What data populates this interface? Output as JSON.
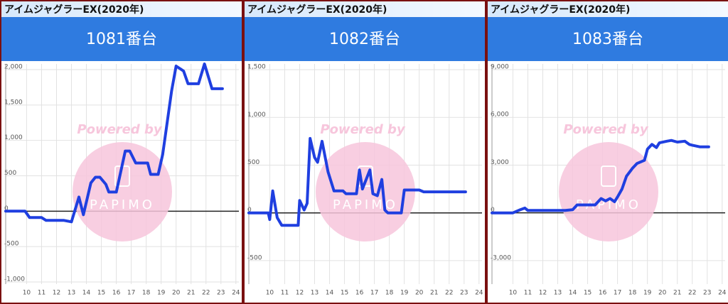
{
  "chart_data": [
    {
      "type": "line",
      "title": "アイムジャグラーEX(2020年)",
      "subtitle": "1081番台",
      "watermark": "Powered by",
      "logo": "PAPIMO",
      "color": "#1f3fe0",
      "grid": true,
      "x": [
        8.6,
        9.9,
        10.2,
        11.0,
        11.3,
        12.5,
        13.0,
        13.5,
        13.8,
        14.3,
        14.6,
        14.9,
        15.3,
        15.5,
        16.0,
        16.6,
        16.9,
        17.3,
        18.1,
        18.3,
        18.8,
        19.1,
        19.7,
        20.0,
        20.5,
        20.8,
        21.5,
        21.9,
        22.4,
        23.1
      ],
      "values": [
        0,
        0,
        -90,
        -90,
        -130,
        -130,
        -150,
        200,
        -50,
        400,
        480,
        480,
        380,
        270,
        270,
        850,
        850,
        680,
        680,
        520,
        520,
        800,
        1700,
        2050,
        1980,
        1800,
        1800,
        2080,
        1730,
        1730
      ],
      "xlim": [
        8.6,
        24.2
      ],
      "xticks": [
        10,
        11,
        12,
        13,
        14,
        15,
        16,
        17,
        18,
        19,
        20,
        21,
        22,
        23,
        24
      ],
      "ylim": [
        -1030,
        2080
      ],
      "yticks": [
        {
          "value": -1000,
          "label": "-1,000"
        },
        -500,
        0,
        500,
        {
          "value": 1000,
          "label": "1,000"
        },
        {
          "value": 1500,
          "label": "1,500"
        },
        {
          "value": 2000,
          "label": "2,000"
        }
      ]
    },
    {
      "type": "line",
      "title": "アイムジャグラーEX(2020年)",
      "subtitle": "1082番台",
      "watermark": "Powered by",
      "logo": "PAPIMO",
      "color": "#1f3fe0",
      "grid": true,
      "x": [
        8.6,
        9.9,
        10.0,
        10.2,
        10.5,
        10.8,
        11.9,
        12.0,
        12.3,
        12.5,
        12.7,
        13.0,
        13.2,
        13.5,
        13.9,
        14.3,
        14.9,
        15.1,
        15.8,
        16.0,
        16.2,
        16.7,
        16.9,
        17.2,
        17.5,
        17.7,
        17.9,
        18.8,
        19.0,
        20.0,
        20.3,
        23.1
      ],
      "values": [
        0,
        0,
        -70,
        230,
        -50,
        -130,
        -130,
        130,
        30,
        100,
        780,
        580,
        530,
        750,
        430,
        230,
        230,
        200,
        200,
        450,
        250,
        450,
        200,
        180,
        350,
        30,
        0,
        0,
        240,
        240,
        220,
        220
      ],
      "xlim": [
        8.6,
        24.2
      ],
      "xticks": [
        10,
        11,
        12,
        13,
        14,
        15,
        16,
        17,
        18,
        19,
        20,
        21,
        22,
        23,
        24
      ],
      "ylim": [
        -746,
        1560
      ],
      "yticks": [
        -500,
        0,
        500,
        {
          "value": 1000,
          "label": "1,000"
        },
        {
          "value": 1500,
          "label": "1,500"
        }
      ]
    },
    {
      "type": "line",
      "title": "アイムジャグラーEX(2020年)",
      "subtitle": "1083番台",
      "watermark": "Powered by",
      "logo": "PAPIMO",
      "color": "#1f3fe0",
      "grid": true,
      "x": [
        8.6,
        10.0,
        10.5,
        10.8,
        11.0,
        11.5,
        13.5,
        14.0,
        14.3,
        15.5,
        15.9,
        16.2,
        16.5,
        16.8,
        17.0,
        17.3,
        17.6,
        18.0,
        18.3,
        18.8,
        19.0,
        19.3,
        19.6,
        19.8,
        20.3,
        20.6,
        21.0,
        21.5,
        21.8,
        22.0,
        22.5,
        23.1
      ],
      "values": [
        0,
        0,
        200,
        300,
        150,
        150,
        150,
        200,
        500,
        500,
        900,
        750,
        900,
        700,
        1000,
        1500,
        2300,
        2800,
        3100,
        3300,
        4000,
        4300,
        4100,
        4400,
        4500,
        4550,
        4450,
        4500,
        4300,
        4250,
        4150,
        4150
      ],
      "xlim": [
        8.6,
        24.2
      ],
      "xticks": [
        10,
        11,
        12,
        13,
        14,
        15,
        16,
        17,
        18,
        19,
        20,
        21,
        22,
        23,
        24
      ],
      "ylim": [
        -4478,
        9358
      ],
      "yticks": [
        {
          "value": -3000,
          "label": "-3,000"
        },
        0,
        {
          "value": 3000,
          "label": "3,000"
        },
        {
          "value": 6000,
          "label": "6,000"
        },
        {
          "value": 9000,
          "label": "9,000"
        }
      ]
    }
  ]
}
